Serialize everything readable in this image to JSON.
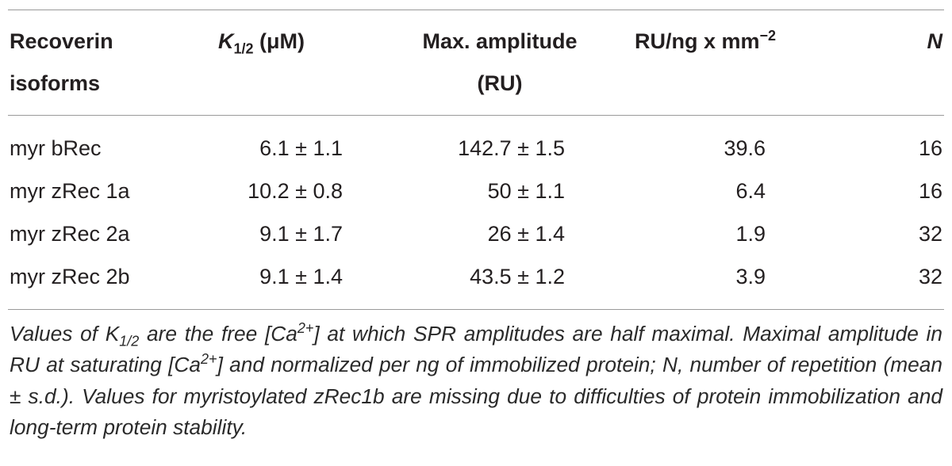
{
  "table": {
    "header": [
      {
        "lines": [
          "Recoverin",
          "isoforms"
        ]
      },
      {
        "symbol": "K",
        "subscript": "1/2",
        "unit": " (μM)"
      },
      {
        "lines": [
          "Max. amplitude",
          "(RU)"
        ]
      },
      {
        "text": "RU/ng x mm",
        "superscript": "−2"
      },
      {
        "text": "N"
      }
    ],
    "rows": [
      [
        "myr bRec",
        "6.1 ± 1.1",
        "142.7 ± 1.5",
        "39.6",
        "16"
      ],
      [
        "myr zRec 1a",
        "10.2 ± 0.8",
        "50 ± 1.1",
        "6.4",
        "16"
      ],
      [
        "myr zRec 2a",
        "9.1 ± 1.7",
        "26 ± 1.4",
        "1.9",
        "32"
      ],
      [
        "myr zRec 2b",
        "9.1 ± 1.4",
        "43.5 ± 1.2",
        "3.9",
        "32"
      ]
    ]
  },
  "caption": {
    "segments": [
      "Values of K",
      "1/2",
      " are the free [Ca",
      "2+",
      "] at which SPR amplitudes are half maximal. Maximal amplitude in RU at saturating [Ca",
      "2+",
      "] and normalized per ng of immobilized protein; N, number of repetition (mean ± s.d.). Values for myristoylated zRec1b are missing due to difficulties of protein immobilization and long-term protein stability."
    ]
  }
}
